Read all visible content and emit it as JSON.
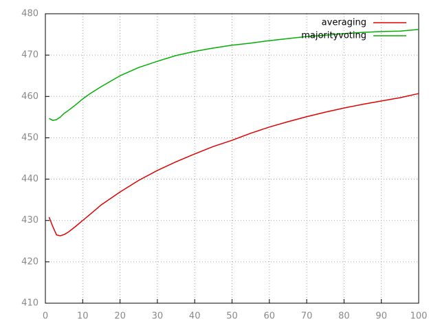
{
  "chart_data": {
    "type": "line",
    "x": [
      1,
      2,
      3,
      4,
      5,
      6,
      8,
      10,
      12,
      15,
      20,
      25,
      30,
      35,
      40,
      45,
      50,
      55,
      60,
      65,
      70,
      75,
      80,
      85,
      90,
      95,
      100
    ],
    "series": [
      {
        "name": "averaging",
        "color": "#e00000",
        "values": [
          430.8,
          428.5,
          426.5,
          426.3,
          426.6,
          427.1,
          428.5,
          430,
          431.5,
          433.8,
          436.9,
          439.7,
          442.1,
          444.2,
          446.1,
          447.9,
          449.4,
          451.1,
          452.6,
          453.9,
          455.1,
          456.2,
          457.2,
          458.1,
          458.9,
          459.7,
          460.7
        ]
      },
      {
        "name": "majorityvoting",
        "color": "#00b000",
        "values": [
          454.7,
          454.2,
          454.4,
          455,
          455.9,
          456.5,
          457.9,
          459.4,
          460.7,
          462.4,
          465,
          467,
          468.5,
          469.9,
          470.9,
          471.7,
          472.4,
          472.9,
          473.5,
          474,
          474.5,
          474.8,
          475.2,
          475.5,
          475.7,
          475.8,
          476.2
        ]
      }
    ],
    "xlim": [
      0,
      100
    ],
    "xticks": [
      0,
      10,
      20,
      30,
      40,
      50,
      60,
      70,
      80,
      90,
      100
    ],
    "ylim": [
      410,
      480
    ],
    "yticks": [
      410,
      420,
      430,
      440,
      450,
      460,
      470,
      480
    ],
    "grid": true,
    "legend": "top-right"
  }
}
